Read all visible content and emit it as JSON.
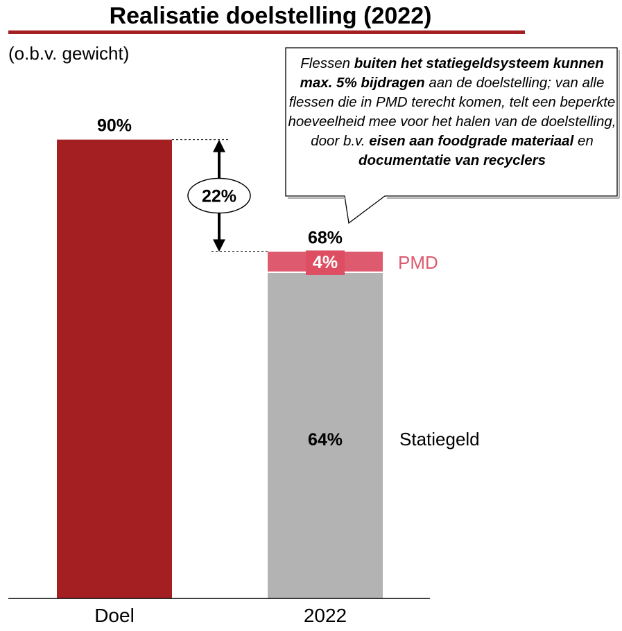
{
  "title": "Realisatie doelstelling (2022)",
  "subtitle": "(o.b.v. gewicht)",
  "callout": {
    "parts": [
      {
        "text": "Flessen ",
        "bold": false
      },
      {
        "text": "buiten het statiegeldsysteem kunnen max. 5% bijdragen",
        "bold": true
      },
      {
        "text": " aan de doelstelling; van alle flessen die in PMD terecht komen, telt een beperkte hoeveelheid mee voor het halen van de doelstelling, door b.v. ",
        "bold": false
      },
      {
        "text": "eisen aan foodgrade materiaal",
        "bold": true
      },
      {
        "text": " en ",
        "bold": false
      },
      {
        "text": "documentatie van recyclers",
        "bold": true
      }
    ]
  },
  "gap_label": "22%",
  "colors": {
    "doel": "#a31f22",
    "statiegeld": "#b3b3b3",
    "pmd": "#de5a6e",
    "pmd_label": "#de5a6e",
    "title_rule": "#a31f22"
  },
  "chart_data": {
    "type": "bar",
    "stacked": true,
    "categories": [
      "Doel",
      "2022"
    ],
    "series": [
      {
        "name": "Doel",
        "values": [
          90,
          null
        ]
      },
      {
        "name": "Statiegeld",
        "values": [
          null,
          64
        ]
      },
      {
        "name": "PMD",
        "values": [
          null,
          4
        ]
      }
    ],
    "totals": [
      {
        "category": "Doel",
        "label": "90%"
      },
      {
        "category": "2022",
        "label": "68%"
      }
    ],
    "segment_labels": [
      {
        "series": "Statiegeld",
        "label": "64%"
      },
      {
        "series": "PMD",
        "label": "4%"
      }
    ],
    "difference": {
      "from": "Doel",
      "to": "2022",
      "label": "22%"
    },
    "ylim": [
      0,
      100
    ],
    "grid": false,
    "legend": "right of bars (direct labels)"
  }
}
